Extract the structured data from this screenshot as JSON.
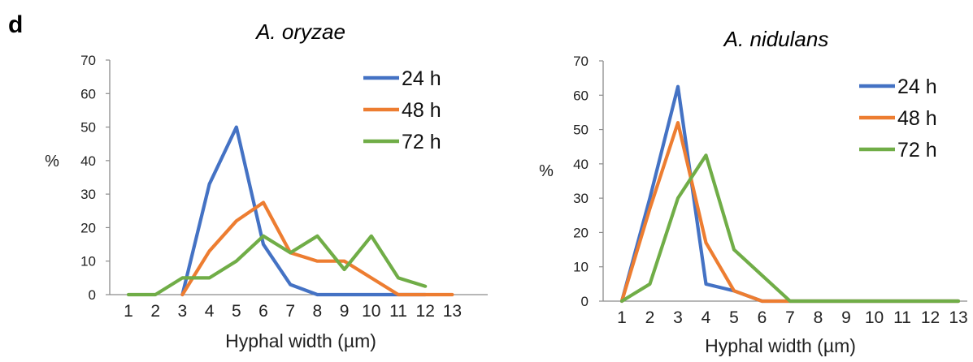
{
  "panel_label": "d",
  "colors": {
    "24h": "#4472C4",
    "48h": "#ED7D31",
    "72h": "#70AD47",
    "axis": "#8c8c8c"
  },
  "chart_data": [
    {
      "type": "line",
      "title": "A. oryzae",
      "xlabel": "Hyphal width (µm)",
      "ylabel": "%",
      "ylim": [
        0,
        70
      ],
      "yticks": [
        0,
        10,
        20,
        30,
        40,
        50,
        60,
        70
      ],
      "categories": [
        "1",
        "2",
        "3",
        "4",
        "5",
        "6",
        "7",
        "8",
        "9",
        "10",
        "11",
        "12",
        "13"
      ],
      "legend_position": "top-right",
      "grid": false,
      "series": [
        {
          "name": "24 h",
          "color": "#4472C4",
          "points": [
            [
              2,
              0
            ],
            [
              3,
              33
            ],
            [
              4,
              50
            ],
            [
              5,
              15
            ],
            [
              6,
              3
            ],
            [
              7,
              0
            ],
            [
              8,
              0
            ],
            [
              9,
              0
            ],
            [
              10,
              0
            ],
            [
              11,
              0
            ]
          ]
        },
        {
          "name": "48 h",
          "color": "#ED7D31",
          "points": [
            [
              2,
              0
            ],
            [
              3,
              13
            ],
            [
              4,
              22
            ],
            [
              5,
              27.5
            ],
            [
              6,
              12.5
            ],
            [
              7,
              10
            ],
            [
              8,
              10
            ],
            [
              9,
              5
            ],
            [
              10,
              0
            ],
            [
              11,
              0
            ],
            [
              12,
              0
            ]
          ]
        },
        {
          "name": "72 h",
          "color": "#70AD47",
          "points": [
            [
              0,
              0
            ],
            [
              1,
              0
            ],
            [
              2,
              5
            ],
            [
              3,
              5
            ],
            [
              4,
              10
            ],
            [
              5,
              17.5
            ],
            [
              6,
              12.5
            ],
            [
              7,
              17.5
            ],
            [
              8,
              7.5
            ],
            [
              9,
              17.5
            ],
            [
              10,
              5
            ],
            [
              11,
              2.5
            ]
          ]
        }
      ]
    },
    {
      "type": "line",
      "title": "A. nidulans",
      "xlabel": "Hyphal width (µm)",
      "ylabel": "%",
      "ylim": [
        0,
        70
      ],
      "yticks": [
        0,
        10,
        20,
        30,
        40,
        50,
        60,
        70
      ],
      "categories": [
        "1",
        "2",
        "3",
        "4",
        "5",
        "6",
        "7",
        "8",
        "9",
        "10",
        "11",
        "12",
        "13"
      ],
      "legend_position": "top-right",
      "grid": false,
      "series": [
        {
          "name": "24 h",
          "color": "#4472C4",
          "points": [
            [
              0,
              0
            ],
            [
              1,
              30
            ],
            [
              2,
              62.5
            ],
            [
              3,
              5
            ],
            [
              4,
              3
            ],
            [
              5,
              0
            ],
            [
              6,
              0
            ],
            [
              7,
              0
            ],
            [
              8,
              0
            ],
            [
              9,
              0
            ],
            [
              10,
              0
            ],
            [
              11,
              0
            ],
            [
              12,
              0
            ]
          ]
        },
        {
          "name": "48 h",
          "color": "#ED7D31",
          "points": [
            [
              0,
              0
            ],
            [
              1,
              27
            ],
            [
              2,
              52
            ],
            [
              3,
              17
            ],
            [
              4,
              3
            ],
            [
              5,
              0
            ],
            [
              6,
              0
            ],
            [
              7,
              0
            ],
            [
              8,
              0
            ],
            [
              9,
              0
            ],
            [
              10,
              0
            ],
            [
              11,
              0
            ],
            [
              12,
              0
            ]
          ]
        },
        {
          "name": "72 h",
          "color": "#70AD47",
          "points": [
            [
              0,
              0
            ],
            [
              1,
              5
            ],
            [
              2,
              30
            ],
            [
              3,
              42.5
            ],
            [
              4,
              15
            ],
            [
              5,
              7.5
            ],
            [
              6,
              0
            ],
            [
              7,
              0
            ],
            [
              8,
              0
            ],
            [
              9,
              0
            ],
            [
              10,
              0
            ],
            [
              11,
              0
            ],
            [
              12,
              0
            ]
          ]
        }
      ]
    }
  ]
}
